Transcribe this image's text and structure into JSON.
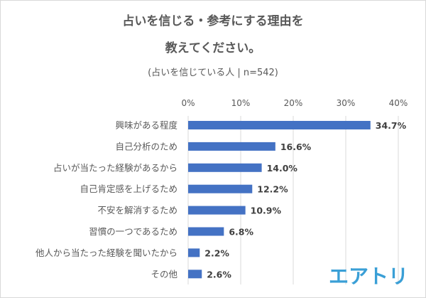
{
  "chart_data": {
    "type": "bar",
    "orientation": "horizontal",
    "title_lines": [
      "占いを信じる・参考にする理由を",
      "教えてください。"
    ],
    "subtitle": "(占いを信じている人 | n=542)",
    "categories": [
      "興味がある程度",
      "自己分析のため",
      "占いが当たった経験があるから",
      "自己肯定感を上げるため",
      "不安を解消するため",
      "習慣の一つであるため",
      "他人から当たった経験を聞いたから",
      "その他"
    ],
    "values": [
      34.7,
      16.6,
      14.0,
      12.2,
      10.9,
      6.8,
      2.2,
      2.6
    ],
    "data_labels": [
      "34.7%",
      "16.6%",
      "14.0%",
      "12.2%",
      "10.9%",
      "6.8%",
      "2.2%",
      "2.6%"
    ],
    "xlim": [
      0,
      40
    ],
    "x_ticks": [
      "0%",
      "10%",
      "20%",
      "30%",
      "40%"
    ],
    "x_tick_values": [
      0,
      10,
      20,
      30,
      40
    ],
    "axis_position": "top",
    "grid": true,
    "bar_color": "#4472c4",
    "logo_text": "エアトリ",
    "logo_color": "#3a9fd6"
  }
}
